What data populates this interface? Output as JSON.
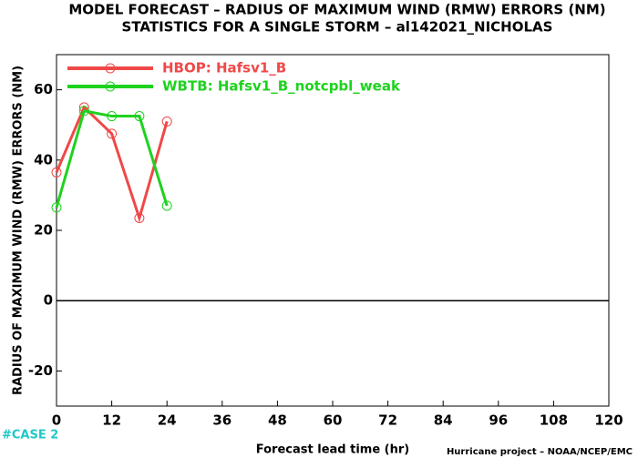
{
  "chart_data": {
    "type": "line",
    "title": "MODEL FORECAST – RADIUS OF MAXIMUM WIND (RMW) ERRORS (NM)",
    "subtitle": "STATISTICS FOR A SINGLE STORM – al142021_NICHOLAS",
    "x_label": "Forecast lead time (hr)",
    "y_label": "RADIUS OF MAXIMUM WIND (RMW) ERRORS (NM)",
    "case_label": "#CASE 2",
    "credit": "Hurricane project – NOAA/NCEP/EMC",
    "x": [
      0,
      6,
      12,
      18,
      24
    ],
    "series": [
      {
        "name": "HBOP: Hafsv1_B",
        "color": "#f04848",
        "values": [
          36.5,
          55,
          47.5,
          23.5,
          51
        ]
      },
      {
        "name": "WBTB: Hafsv1_B_notcpbl_weak",
        "color": "#1ed21e",
        "values": [
          26.5,
          54,
          52.5,
          52.5,
          27
        ]
      }
    ],
    "xlim": [
      0,
      120
    ],
    "xticks": [
      0,
      12,
      24,
      36,
      48,
      60,
      72,
      84,
      96,
      108,
      120
    ],
    "ylim": [
      -30,
      70
    ],
    "yticks": [
      -20,
      0,
      20,
      40,
      60
    ],
    "legend": "top-left"
  }
}
